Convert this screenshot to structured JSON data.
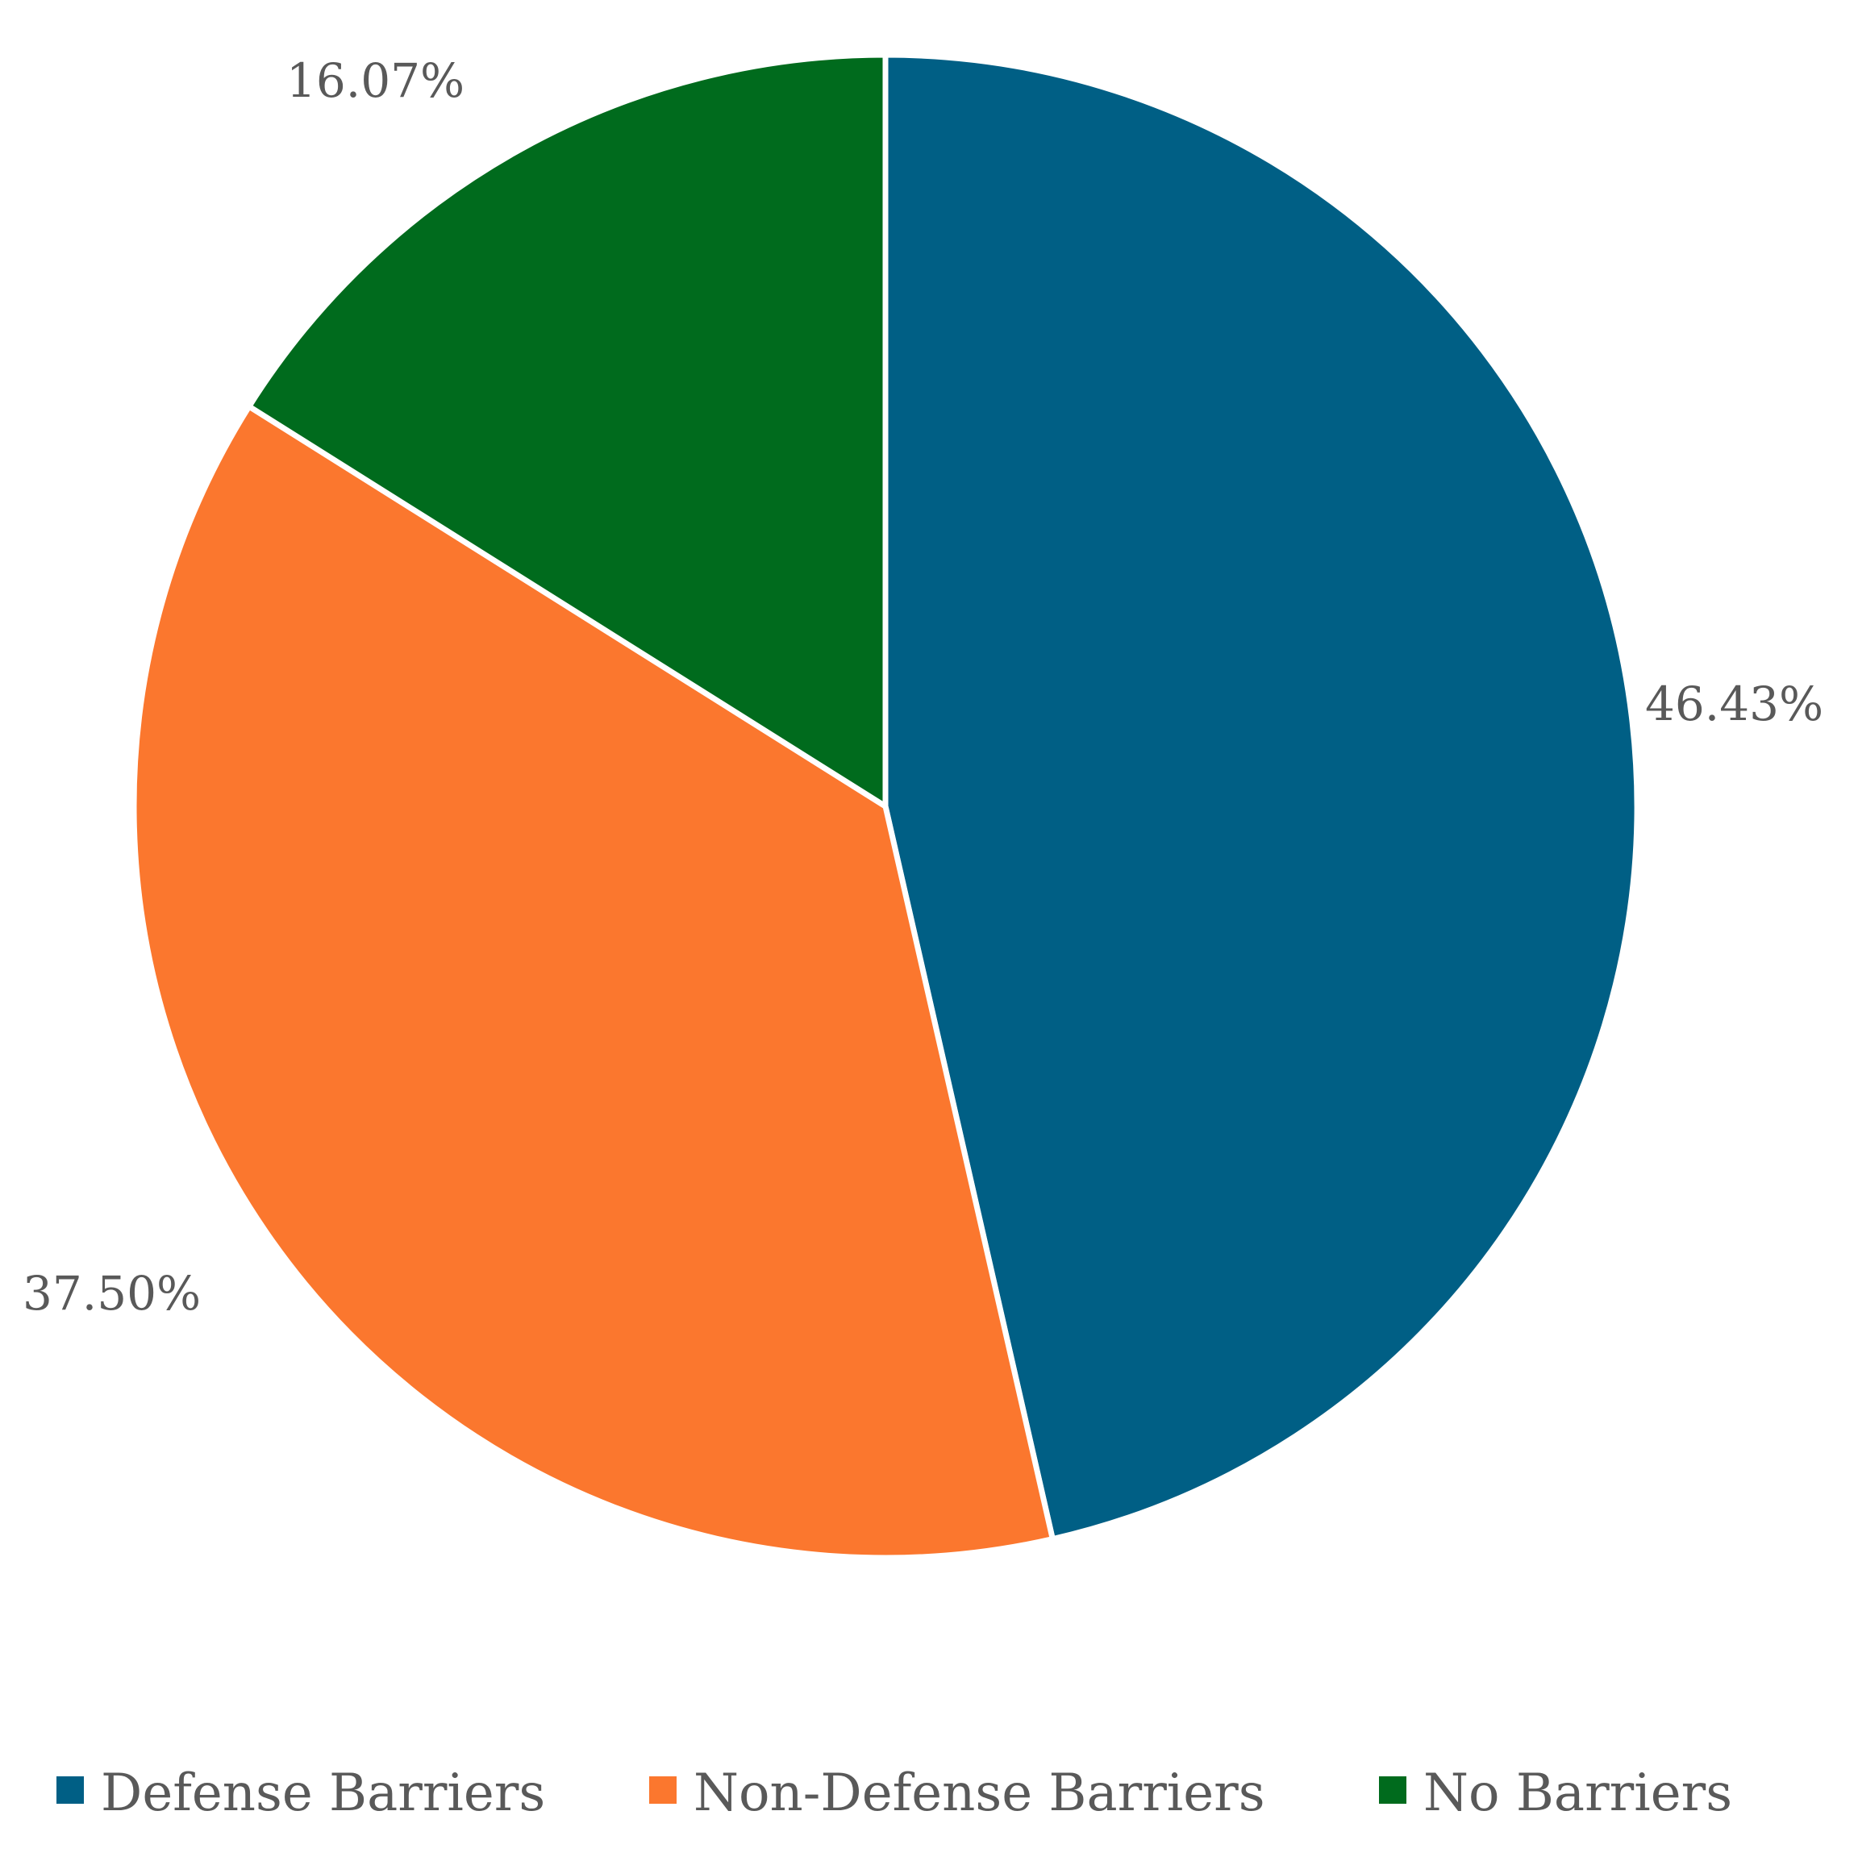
{
  "chart_data": {
    "type": "pie",
    "title": "",
    "slices": [
      {
        "label": "Defense Barriers",
        "value": 46.43,
        "display": "46.43%",
        "color": "#005F85"
      },
      {
        "label": "Non-Defense Barriers",
        "value": 37.5,
        "display": "37.50%",
        "color": "#FB772E"
      },
      {
        "label": "No Barriers",
        "value": 16.07,
        "display": "16.07%",
        "color": "#006B1D"
      }
    ],
    "start_angle": "12 o'clock",
    "direction": "clockwise",
    "legend_position": "bottom",
    "slice_border_color": "#ffffff"
  }
}
